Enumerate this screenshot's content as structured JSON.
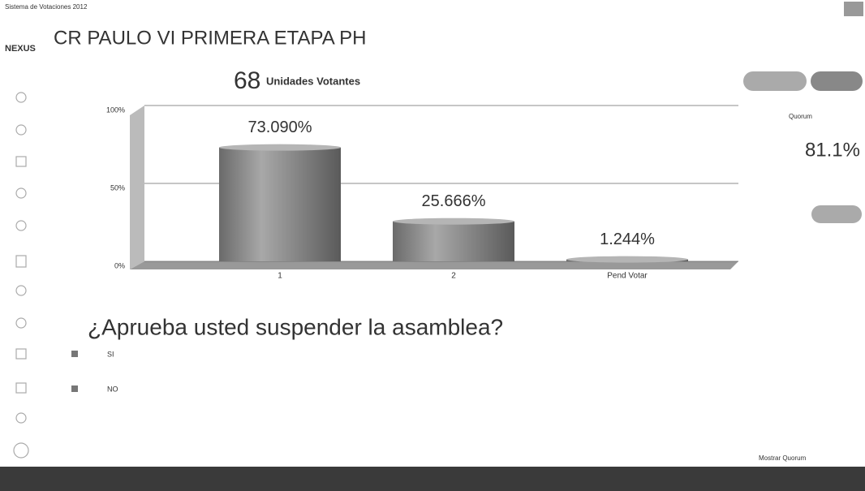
{
  "window_title": "Sistema de Votaciones 2012",
  "logo": "NEXUS",
  "title": "CR PAULO VI PRIMERA ETAPA PH",
  "voting_units": {
    "count": "68",
    "label": "Unidades Votantes"
  },
  "question": "¿Aprueba usted suspender la asamblea?",
  "options": [
    "SI",
    "NO"
  ],
  "quorum": {
    "label": "Quorum",
    "value": "81.1%"
  },
  "show_quorum": "Mostrar Quorum",
  "chart_data": {
    "type": "bar",
    "categories": [
      "1",
      "2",
      "Pend Votar"
    ],
    "values": [
      73.09,
      25.666,
      1.244
    ],
    "value_labels": [
      "73.090%",
      "25.666%",
      "1.244%"
    ],
    "color": "#8a8a8a",
    "ylim": [
      0,
      100
    ],
    "yticks": [
      {
        "value": 0,
        "label": "0%"
      },
      {
        "value": 50,
        "label": "50%"
      },
      {
        "value": 100,
        "label": "100%"
      }
    ],
    "grid": true
  }
}
